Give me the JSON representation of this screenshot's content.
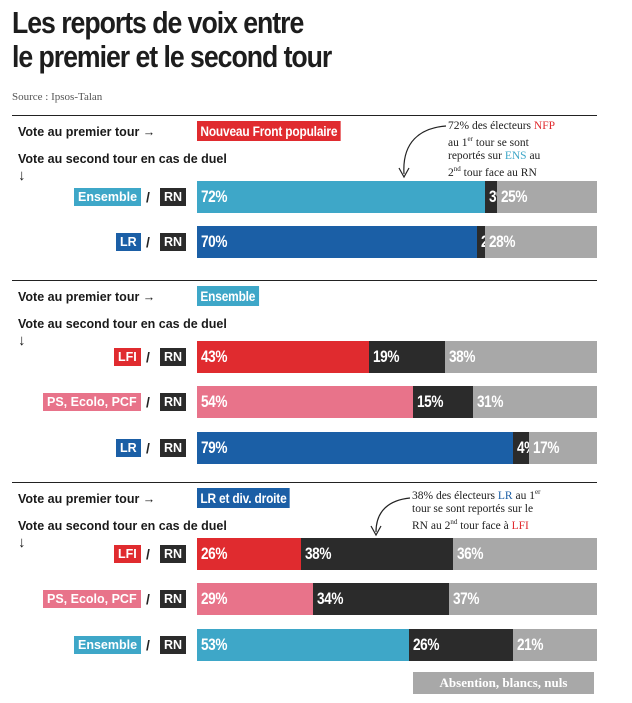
{
  "title_line1": "Les reports de voix entre",
  "title_line2": "le premier et le second tour",
  "source": "Source : Ipsos-Talan",
  "colors": {
    "nfp": "#e02b2f",
    "ens": "#3ea7c8",
    "lr": "#1b5fa6",
    "lfi": "#e02b2f",
    "ps": "#e8738a",
    "rn": "#2b2b2b",
    "abs": "#a8a8a8"
  },
  "legend_abs": "Absention, blancs, nuls",
  "chart_data": {
    "type": "bar",
    "stacked": true,
    "series_order": [
      "first_choice",
      "rn",
      "abstention"
    ],
    "sections": [
      {
        "first_round_label": "Vote au premier tour",
        "first_round_party": "Nouveau Front populaire",
        "second_round_label": "Vote au second tour en cas de duel",
        "annotation": {
          "pre": "72% des électeurs ",
          "hl1": "NFP",
          "mid1": "au 1",
          "sup1": "er",
          "mid2": " tour se sont",
          "mid3": "reportés sur ",
          "hl2": "ENS",
          "mid4": " au",
          "mid5": "2",
          "sup2": "nd",
          "end": " tour face au RN"
        },
        "rows": [
          {
            "duel": "Ensemble",
            "vs": "RN",
            "first_choice": 72,
            "rn": 3,
            "abstention": 25,
            "color_key": "ens"
          },
          {
            "duel": "LR",
            "vs": "RN",
            "first_choice": 70,
            "rn": 2,
            "abstention": 28,
            "color_key": "lr"
          }
        ]
      },
      {
        "first_round_label": "Vote au premier tour",
        "first_round_party": "Ensemble",
        "second_round_label": "Vote au second tour en cas de duel",
        "rows": [
          {
            "duel": "LFI",
            "vs": "RN",
            "first_choice": 43,
            "rn": 19,
            "abstention": 38,
            "color_key": "lfi"
          },
          {
            "duel": "PS, Ecolo, PCF",
            "vs": "RN",
            "first_choice": 54,
            "rn": 15,
            "abstention": 31,
            "color_key": "ps"
          },
          {
            "duel": "LR",
            "vs": "RN",
            "first_choice": 79,
            "rn": 4,
            "abstention": 17,
            "color_key": "lr"
          }
        ]
      },
      {
        "first_round_label": "Vote au premier tour",
        "first_round_party": "LR et div. droite",
        "second_round_label": "Vote au second tour en cas de duel",
        "annotation": {
          "pre": "38% des électeurs ",
          "hl1": "LR",
          "mid1": " au 1",
          "sup1": "er",
          "mid2": "tour se sont reportés sur le",
          "mid3": "RN au 2",
          "sup2": "nd",
          "mid4": " tour face à ",
          "hl2": "LFI"
        },
        "rows": [
          {
            "duel": "LFI",
            "vs": "RN",
            "first_choice": 26,
            "rn": 38,
            "abstention": 36,
            "color_key": "lfi"
          },
          {
            "duel": "PS, Ecolo, PCF",
            "vs": "RN",
            "first_choice": 29,
            "rn": 34,
            "abstention": 37,
            "color_key": "ps"
          },
          {
            "duel": "Ensemble",
            "vs": "RN",
            "first_choice": 53,
            "rn": 26,
            "abstention": 21,
            "color_key": "ens"
          }
        ]
      }
    ]
  }
}
